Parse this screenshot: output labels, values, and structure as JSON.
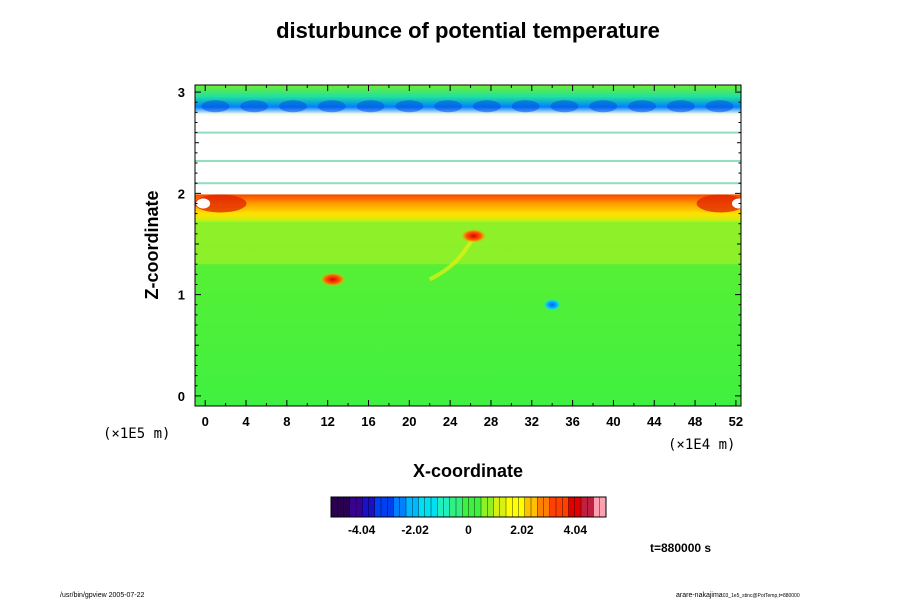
{
  "chart_data": {
    "type": "heatmap",
    "title": "disturbunce of potential temperature",
    "xlabel": "X-coordinate",
    "ylabel": "Z-coordinate",
    "x_ticks": [
      "0",
      "4",
      "8",
      "12",
      "16",
      "20",
      "24",
      "28",
      "32",
      "36",
      "40",
      "44",
      "48",
      "52"
    ],
    "y_ticks": [
      "0",
      "1",
      "2",
      "3"
    ],
    "xlim": [
      -1,
      52.5
    ],
    "ylim": [
      -0.1,
      3.07
    ],
    "x_unit": "(×1E4 m)",
    "y_unit": "(×1E5 m)",
    "colorbar": {
      "ticks": [
        "-4.04",
        "-2.02",
        "0",
        "2.02",
        "4.04"
      ],
      "tick_values": [
        -4.04,
        -2.02,
        0,
        2.02,
        4.04
      ],
      "range": [
        -5.2,
        5.2
      ],
      "colors": [
        "#2a0050",
        "#3a0090",
        "#1a10c8",
        "#0040f0",
        "#0080ff",
        "#00b8ff",
        "#00e0f0",
        "#20f0c0",
        "#30f080",
        "#40f040",
        "#90f020",
        "#d8f010",
        "#ffff00",
        "#ffc000",
        "#ff8000",
        "#ff4000",
        "#e00000",
        "#c02040",
        "#ffa0b0"
      ]
    },
    "regions": [
      {
        "z_range": [
          0.0,
          1.3
        ],
        "value": 0.0
      },
      {
        "z_range": [
          1.3,
          1.75
        ],
        "value": 0.8
      },
      {
        "z_range": [
          1.75,
          1.98
        ],
        "value": 2.8
      },
      {
        "z_range": [
          2.78,
          3.07
        ],
        "value": -1.5
      }
    ],
    "features": [
      {
        "x": 26.3,
        "z": 1.58,
        "value": 4.5
      },
      {
        "x": 12.5,
        "z": 1.15,
        "value": 4.0
      },
      {
        "x": 34.0,
        "z": 0.9,
        "value": -2.5
      }
    ],
    "time_label": "t=880000 s"
  },
  "footer": {
    "left": "/usr/bin/gpview 2005-07-22",
    "right_main": "arare-nakajima",
    "right_small": "03_1e5_stinc@PotTemp,t=880000"
  }
}
